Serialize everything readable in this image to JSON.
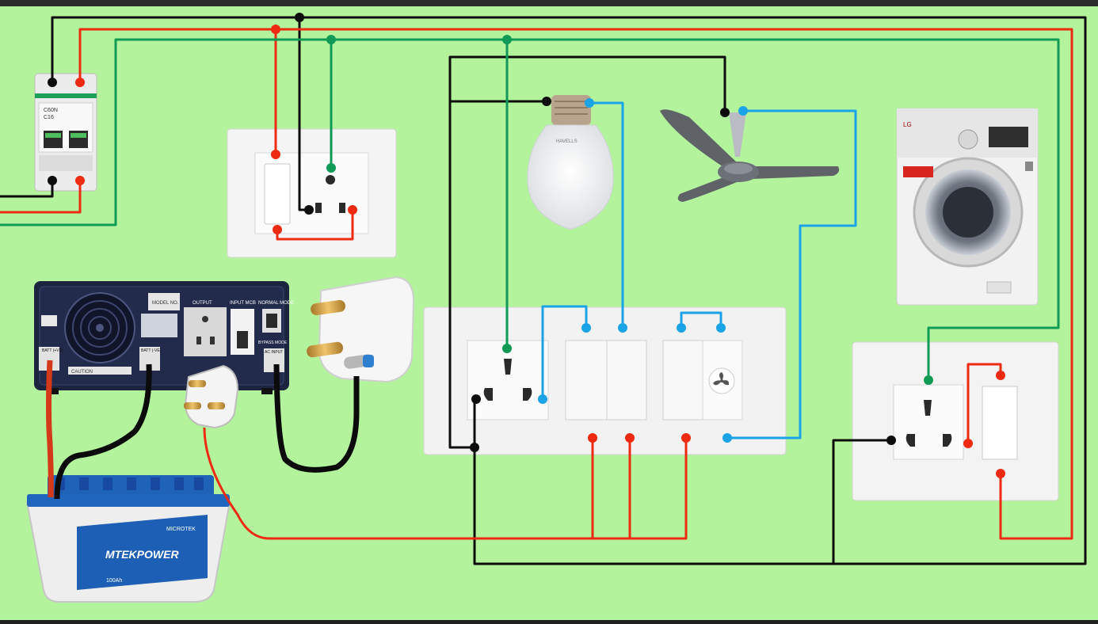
{
  "colors": {
    "background": "#b3f39c",
    "top_bar": "#2a2a2a",
    "wire_black": "#0d0d0d",
    "wire_red": "#ee2a12",
    "wire_green": "#0f9a55",
    "wire_blue": "#1aa3e6",
    "plate_white": "#f4f4f4",
    "inverter_body": "#1d2440",
    "battery_blue": "#1d5fb4"
  },
  "mcb": {
    "label_top": "C60N",
    "label_rating": "C16"
  },
  "inverter": {
    "label_output": "OUTPUT",
    "label_input": "INPUT MCB",
    "label_normal_mode": "NORMAL MODE",
    "label_bypass": "BYPASS MODE",
    "label_batt": "BATT (+VE)",
    "label_batt_neg": "BATT (-VE)",
    "label_ac_input": "AC INPUT",
    "label_warning": "CAUTION",
    "label_model": "MODEL NO."
  },
  "battery": {
    "brand_top": "MICROTEK",
    "brand": "MTEKPOWER",
    "capacity": "100Ah"
  },
  "washing_machine": {
    "brand": "LG"
  },
  "bulb": {
    "brand": "HAVELLS"
  },
  "icons": {
    "fan_regulator": "fan-icon"
  }
}
